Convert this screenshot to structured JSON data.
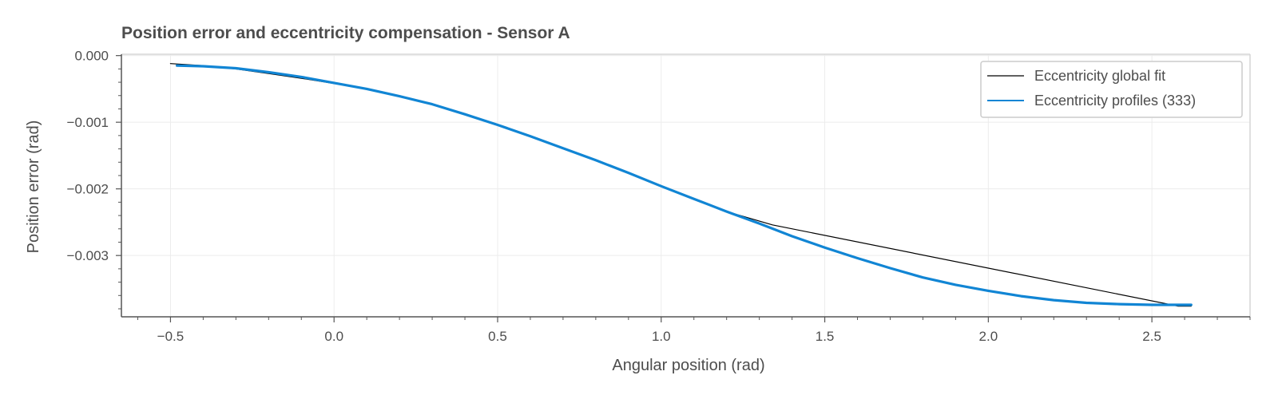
{
  "chart_data": {
    "type": "line",
    "title": "Position error and eccentricity compensation - Sensor A",
    "xlabel": "Angular position (rad)",
    "ylabel": "Position error (rad)",
    "xlim": [
      -0.65,
      2.8
    ],
    "ylim": [
      -0.00392,
      2e-05
    ],
    "x_ticks": [
      -0.5,
      0.0,
      0.5,
      1.0,
      1.5,
      2.0,
      2.5
    ],
    "x_tick_labels": [
      "−0.5",
      "0.0",
      "0.5",
      "1.0",
      "1.5",
      "2.0",
      "2.5"
    ],
    "y_ticks": [
      0.0,
      -0.001,
      -0.002,
      -0.003
    ],
    "y_tick_labels": [
      "0.000",
      "−0.001",
      "−0.002",
      "−0.003"
    ],
    "grid": true,
    "legend_position": "top-right",
    "series": [
      {
        "name": "Eccentricity global fit",
        "color": "#000000",
        "x": [
          -0.5,
          -0.4,
          -0.3,
          -0.2,
          -0.1,
          0.0,
          0.1,
          0.2,
          0.3,
          0.4,
          0.5,
          0.6,
          0.7,
          0.8,
          0.9,
          1.0,
          1.1,
          1.2,
          1.34,
          2.58,
          2.62
        ],
        "y": [
          -0.00012,
          -0.00015,
          -0.0002,
          -0.00027,
          -0.00034,
          -0.00042,
          -0.0005,
          -0.00061,
          -0.00073,
          -0.00087,
          -0.00104,
          -0.0012,
          -0.00139,
          -0.00157,
          -0.00176,
          -0.00195,
          -0.00215,
          -0.00234,
          -0.00254,
          -0.00376,
          -0.00376
        ]
      },
      {
        "name": "Eccentricity profiles (333)",
        "color": "#1185d4",
        "x": [
          -0.48,
          -0.4,
          -0.3,
          -0.2,
          -0.1,
          0.0,
          0.1,
          0.2,
          0.3,
          0.4,
          0.5,
          0.6,
          0.7,
          0.8,
          0.9,
          1.0,
          1.1,
          1.2,
          1.3,
          1.4,
          1.5,
          1.6,
          1.7,
          1.8,
          1.9,
          2.0,
          2.1,
          2.2,
          2.3,
          2.4,
          2.5,
          2.62
        ],
        "y": [
          -0.00015,
          -0.00016,
          -0.00019,
          -0.00025,
          -0.00032,
          -0.00041,
          -0.0005,
          -0.00061,
          -0.00073,
          -0.00088,
          -0.00104,
          -0.00121,
          -0.00139,
          -0.00157,
          -0.00176,
          -0.00196,
          -0.00215,
          -0.00234,
          -0.00252,
          -0.00271,
          -0.00288,
          -0.00304,
          -0.00319,
          -0.00333,
          -0.00344,
          -0.00353,
          -0.00361,
          -0.00367,
          -0.00371,
          -0.00373,
          -0.00374,
          -0.00374
        ]
      }
    ]
  }
}
